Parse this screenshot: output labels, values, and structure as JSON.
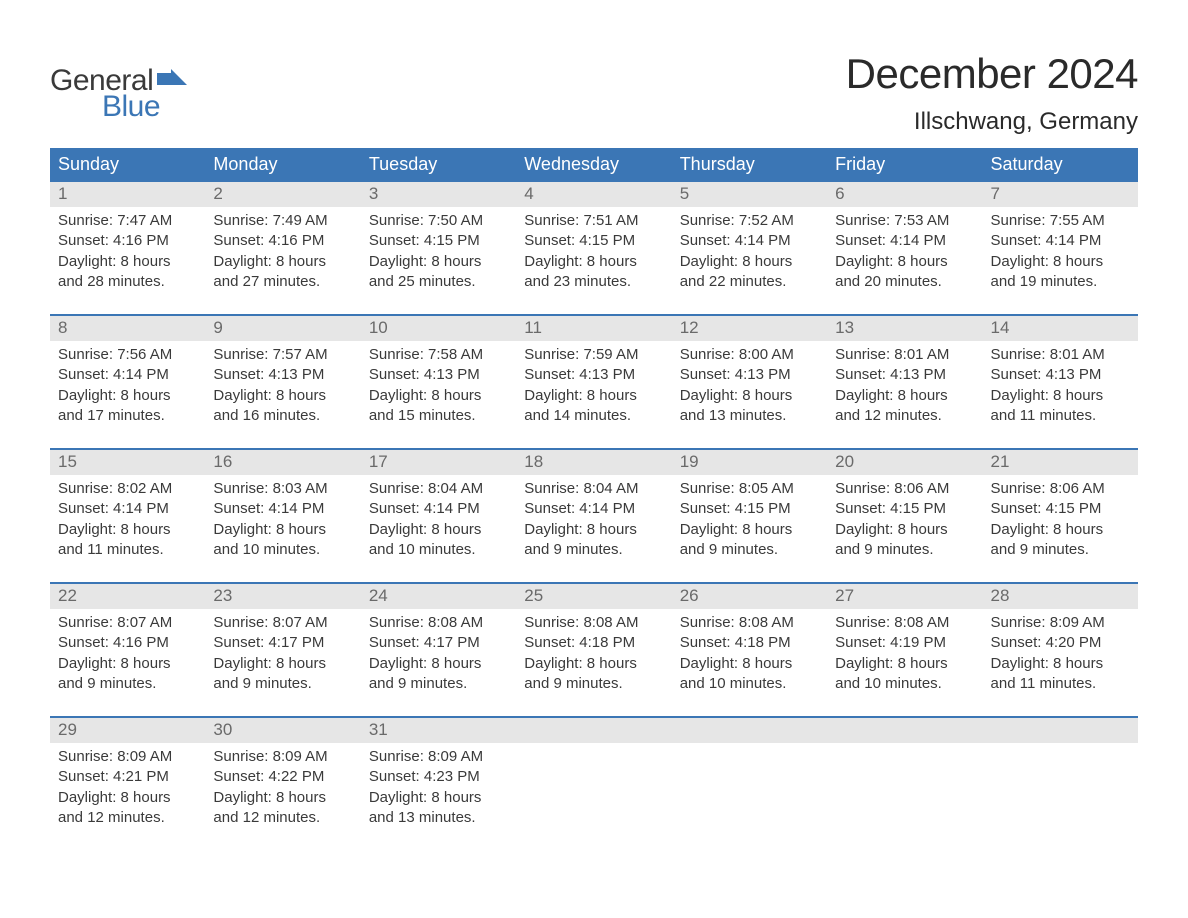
{
  "logo": {
    "word1": "General",
    "word2": "Blue",
    "word1_color": "#3a3a3a",
    "word2_color": "#3b76b5",
    "flag_color": "#3b76b5"
  },
  "title": "December 2024",
  "location": "Illschwang, Germany",
  "colors": {
    "header_bg": "#3b76b5",
    "header_text": "#ffffff",
    "daynum_bg": "#e6e6e6",
    "daynum_text": "#6a6a6a",
    "body_text": "#3a3a3a",
    "row_border": "#3b76b5",
    "page_bg": "#ffffff"
  },
  "typography": {
    "title_fontsize": 42,
    "location_fontsize": 24,
    "dayheader_fontsize": 18,
    "daynum_fontsize": 17,
    "body_fontsize": 15,
    "font_family": "Arial, Helvetica, sans-serif"
  },
  "day_headers": [
    "Sunday",
    "Monday",
    "Tuesday",
    "Wednesday",
    "Thursday",
    "Friday",
    "Saturday"
  ],
  "weeks": [
    [
      {
        "num": "1",
        "sunrise": "7:47 AM",
        "sunset": "4:16 PM",
        "daylight1": "Daylight: 8 hours",
        "daylight2": "and 28 minutes."
      },
      {
        "num": "2",
        "sunrise": "7:49 AM",
        "sunset": "4:16 PM",
        "daylight1": "Daylight: 8 hours",
        "daylight2": "and 27 minutes."
      },
      {
        "num": "3",
        "sunrise": "7:50 AM",
        "sunset": "4:15 PM",
        "daylight1": "Daylight: 8 hours",
        "daylight2": "and 25 minutes."
      },
      {
        "num": "4",
        "sunrise": "7:51 AM",
        "sunset": "4:15 PM",
        "daylight1": "Daylight: 8 hours",
        "daylight2": "and 23 minutes."
      },
      {
        "num": "5",
        "sunrise": "7:52 AM",
        "sunset": "4:14 PM",
        "daylight1": "Daylight: 8 hours",
        "daylight2": "and 22 minutes."
      },
      {
        "num": "6",
        "sunrise": "7:53 AM",
        "sunset": "4:14 PM",
        "daylight1": "Daylight: 8 hours",
        "daylight2": "and 20 minutes."
      },
      {
        "num": "7",
        "sunrise": "7:55 AM",
        "sunset": "4:14 PM",
        "daylight1": "Daylight: 8 hours",
        "daylight2": "and 19 minutes."
      }
    ],
    [
      {
        "num": "8",
        "sunrise": "7:56 AM",
        "sunset": "4:14 PM",
        "daylight1": "Daylight: 8 hours",
        "daylight2": "and 17 minutes."
      },
      {
        "num": "9",
        "sunrise": "7:57 AM",
        "sunset": "4:13 PM",
        "daylight1": "Daylight: 8 hours",
        "daylight2": "and 16 minutes."
      },
      {
        "num": "10",
        "sunrise": "7:58 AM",
        "sunset": "4:13 PM",
        "daylight1": "Daylight: 8 hours",
        "daylight2": "and 15 minutes."
      },
      {
        "num": "11",
        "sunrise": "7:59 AM",
        "sunset": "4:13 PM",
        "daylight1": "Daylight: 8 hours",
        "daylight2": "and 14 minutes."
      },
      {
        "num": "12",
        "sunrise": "8:00 AM",
        "sunset": "4:13 PM",
        "daylight1": "Daylight: 8 hours",
        "daylight2": "and 13 minutes."
      },
      {
        "num": "13",
        "sunrise": "8:01 AM",
        "sunset": "4:13 PM",
        "daylight1": "Daylight: 8 hours",
        "daylight2": "and 12 minutes."
      },
      {
        "num": "14",
        "sunrise": "8:01 AM",
        "sunset": "4:13 PM",
        "daylight1": "Daylight: 8 hours",
        "daylight2": "and 11 minutes."
      }
    ],
    [
      {
        "num": "15",
        "sunrise": "8:02 AM",
        "sunset": "4:14 PM",
        "daylight1": "Daylight: 8 hours",
        "daylight2": "and 11 minutes."
      },
      {
        "num": "16",
        "sunrise": "8:03 AM",
        "sunset": "4:14 PM",
        "daylight1": "Daylight: 8 hours",
        "daylight2": "and 10 minutes."
      },
      {
        "num": "17",
        "sunrise": "8:04 AM",
        "sunset": "4:14 PM",
        "daylight1": "Daylight: 8 hours",
        "daylight2": "and 10 minutes."
      },
      {
        "num": "18",
        "sunrise": "8:04 AM",
        "sunset": "4:14 PM",
        "daylight1": "Daylight: 8 hours",
        "daylight2": "and 9 minutes."
      },
      {
        "num": "19",
        "sunrise": "8:05 AM",
        "sunset": "4:15 PM",
        "daylight1": "Daylight: 8 hours",
        "daylight2": "and 9 minutes."
      },
      {
        "num": "20",
        "sunrise": "8:06 AM",
        "sunset": "4:15 PM",
        "daylight1": "Daylight: 8 hours",
        "daylight2": "and 9 minutes."
      },
      {
        "num": "21",
        "sunrise": "8:06 AM",
        "sunset": "4:15 PM",
        "daylight1": "Daylight: 8 hours",
        "daylight2": "and 9 minutes."
      }
    ],
    [
      {
        "num": "22",
        "sunrise": "8:07 AM",
        "sunset": "4:16 PM",
        "daylight1": "Daylight: 8 hours",
        "daylight2": "and 9 minutes."
      },
      {
        "num": "23",
        "sunrise": "8:07 AM",
        "sunset": "4:17 PM",
        "daylight1": "Daylight: 8 hours",
        "daylight2": "and 9 minutes."
      },
      {
        "num": "24",
        "sunrise": "8:08 AM",
        "sunset": "4:17 PM",
        "daylight1": "Daylight: 8 hours",
        "daylight2": "and 9 minutes."
      },
      {
        "num": "25",
        "sunrise": "8:08 AM",
        "sunset": "4:18 PM",
        "daylight1": "Daylight: 8 hours",
        "daylight2": "and 9 minutes."
      },
      {
        "num": "26",
        "sunrise": "8:08 AM",
        "sunset": "4:18 PM",
        "daylight1": "Daylight: 8 hours",
        "daylight2": "and 10 minutes."
      },
      {
        "num": "27",
        "sunrise": "8:08 AM",
        "sunset": "4:19 PM",
        "daylight1": "Daylight: 8 hours",
        "daylight2": "and 10 minutes."
      },
      {
        "num": "28",
        "sunrise": "8:09 AM",
        "sunset": "4:20 PM",
        "daylight1": "Daylight: 8 hours",
        "daylight2": "and 11 minutes."
      }
    ],
    [
      {
        "num": "29",
        "sunrise": "8:09 AM",
        "sunset": "4:21 PM",
        "daylight1": "Daylight: 8 hours",
        "daylight2": "and 12 minutes."
      },
      {
        "num": "30",
        "sunrise": "8:09 AM",
        "sunset": "4:22 PM",
        "daylight1": "Daylight: 8 hours",
        "daylight2": "and 12 minutes."
      },
      {
        "num": "31",
        "sunrise": "8:09 AM",
        "sunset": "4:23 PM",
        "daylight1": "Daylight: 8 hours",
        "daylight2": "and 13 minutes."
      },
      {
        "empty": true
      },
      {
        "empty": true
      },
      {
        "empty": true
      },
      {
        "empty": true
      }
    ]
  ],
  "labels": {
    "sunrise_prefix": "Sunrise: ",
    "sunset_prefix": "Sunset: "
  }
}
